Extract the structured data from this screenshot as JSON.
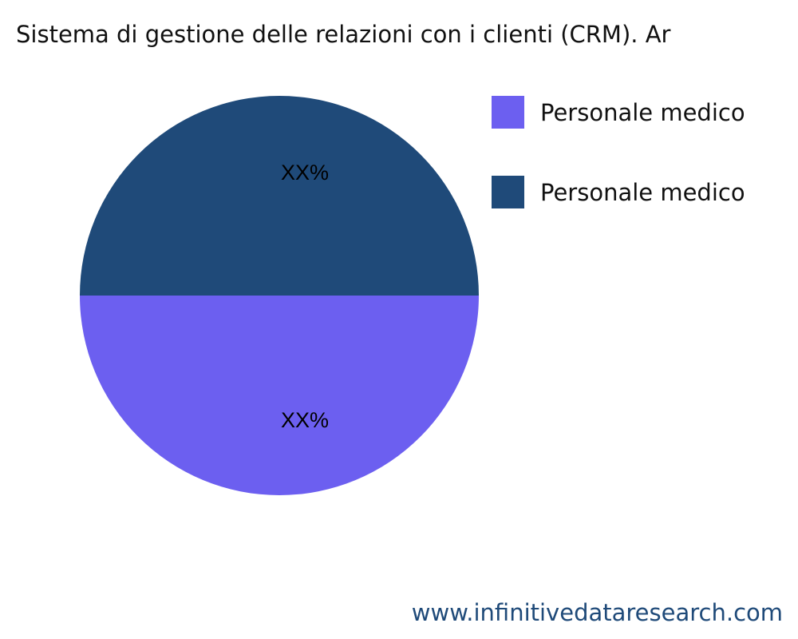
{
  "chart_data": {
    "type": "pie",
    "title": "Sistema di gestione delle relazioni con i clienti (CRM). Ar",
    "slices": [
      {
        "name": "Personale medico",
        "value": 50,
        "label": "XX%",
        "color": "#6c5ff0"
      },
      {
        "name": "Personale medico",
        "value": 50,
        "label": "XX%",
        "color": "#1f4a79"
      }
    ],
    "legend_placement": "top-right"
  },
  "watermark": "www.infinitivedataresearch.com"
}
